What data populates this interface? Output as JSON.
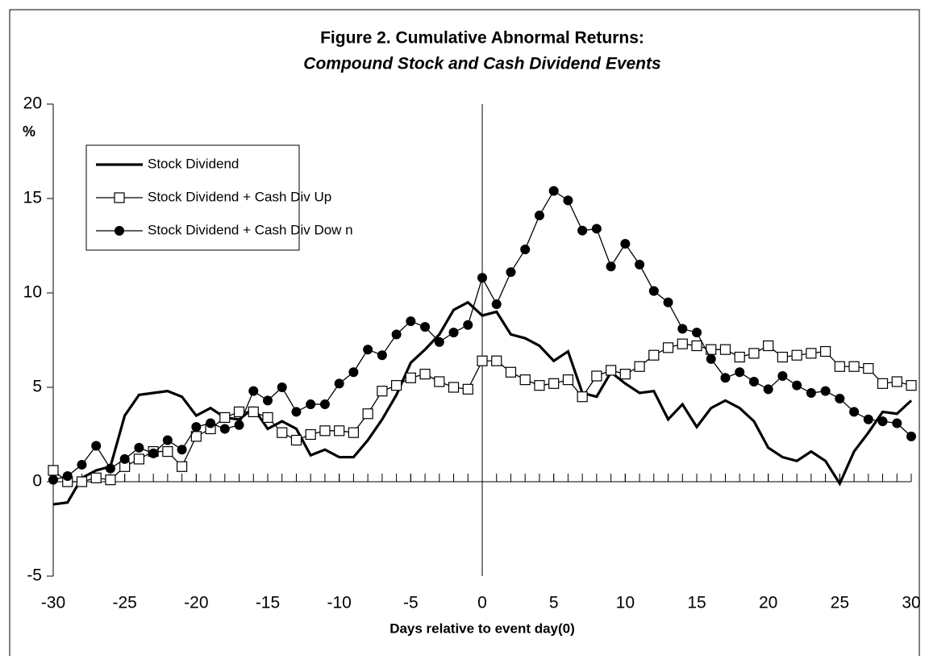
{
  "chart_data": {
    "type": "line",
    "title": "Figure 2. Cumulative Abnormal Returns:",
    "subtitle": "Compound Stock and Cash Dividend Events",
    "x_label": "Days relative to event day(0)",
    "y_label": "%",
    "x": [
      -30,
      -29,
      -28,
      -27,
      -26,
      -25,
      -24,
      -23,
      -22,
      -21,
      -20,
      -19,
      -18,
      -17,
      -16,
      -15,
      -14,
      -13,
      -12,
      -11,
      -10,
      -9,
      -8,
      -7,
      -6,
      -5,
      -4,
      -3,
      -2,
      -1,
      0,
      1,
      2,
      3,
      4,
      5,
      6,
      7,
      8,
      9,
      10,
      11,
      12,
      13,
      14,
      15,
      16,
      17,
      18,
      19,
      20,
      21,
      22,
      23,
      24,
      25,
      26,
      27,
      28,
      29,
      30
    ],
    "series": [
      {
        "name": "Stock Dividend",
        "color": "#000000",
        "marker": "none",
        "values": [
          -1.2,
          -1.1,
          0.2,
          0.6,
          0.8,
          3.5,
          4.6,
          4.7,
          4.8,
          4.5,
          3.5,
          3.9,
          3.4,
          3.3,
          3.9,
          2.8,
          3.2,
          2.8,
          1.4,
          1.7,
          1.3,
          1.3,
          2.2,
          3.3,
          4.6,
          6.3,
          7.0,
          7.8,
          9.1,
          9.5,
          8.8,
          9.0,
          7.8,
          7.6,
          7.2,
          6.4,
          6.9,
          4.7,
          4.5,
          5.8,
          5.2,
          4.7,
          4.8,
          3.3,
          4.1,
          2.9,
          3.9,
          4.3,
          3.9,
          3.2,
          1.8,
          1.3,
          1.1,
          1.6,
          1.1,
          -0.1,
          1.6,
          2.6,
          3.7,
          3.6,
          4.3
        ]
      },
      {
        "name": "Stock Dividend + Cash Div Up",
        "color": "#000000",
        "marker": "square",
        "values": [
          0.6,
          0.0,
          0.0,
          0.2,
          0.1,
          0.8,
          1.2,
          1.6,
          1.6,
          0.8,
          2.4,
          2.8,
          3.4,
          3.7,
          3.7,
          3.4,
          2.6,
          2.2,
          2.5,
          2.7,
          2.7,
          2.6,
          3.6,
          4.8,
          5.1,
          5.5,
          5.7,
          5.3,
          5.0,
          4.9,
          6.4,
          6.4,
          5.8,
          5.4,
          5.1,
          5.2,
          5.4,
          4.5,
          5.6,
          5.9,
          5.7,
          6.1,
          6.7,
          7.1,
          7.3,
          7.2,
          7.0,
          7.0,
          6.6,
          6.8,
          7.2,
          6.6,
          6.7,
          6.8,
          6.9,
          6.1,
          6.1,
          6.0,
          5.2,
          5.3,
          5.1
        ]
      },
      {
        "name": "Stock Dividend + Cash Div Dow n",
        "color": "#000000",
        "marker": "circle",
        "values": [
          0.1,
          0.3,
          0.9,
          1.9,
          0.7,
          1.2,
          1.8,
          1.5,
          2.2,
          1.7,
          2.9,
          3.1,
          2.8,
          3.0,
          4.8,
          4.3,
          5.0,
          3.7,
          4.1,
          4.1,
          5.2,
          5.8,
          7.0,
          6.7,
          7.8,
          8.5,
          8.2,
          7.4,
          7.9,
          8.3,
          10.8,
          9.4,
          11.1,
          12.3,
          14.1,
          15.4,
          14.9,
          13.3,
          13.4,
          11.4,
          12.6,
          11.5,
          10.1,
          9.5,
          8.1,
          7.9,
          6.5,
          5.5,
          5.8,
          5.3,
          4.9,
          5.6,
          5.1,
          4.7,
          4.8,
          4.4,
          3.7,
          3.3,
          3.2,
          3.1,
          2.4
        ]
      }
    ],
    "xlim": [
      -30,
      30
    ],
    "xticks": [
      -30,
      -25,
      -20,
      -15,
      -10,
      -5,
      0,
      5,
      10,
      15,
      20,
      25,
      30
    ],
    "ylim": [
      -5,
      20
    ],
    "yticks": [
      -5,
      0,
      5,
      10,
      15,
      20
    ],
    "grid": false,
    "legend": "upper left"
  }
}
